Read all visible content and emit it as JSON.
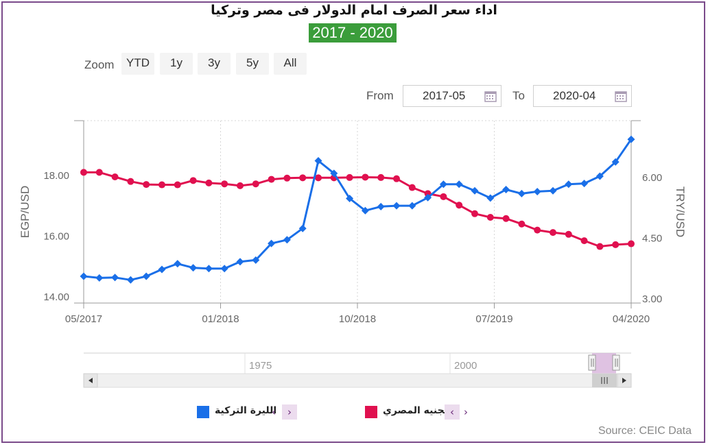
{
  "title": "اداء سعر الصرف امام الدولار فى مصر وتركيا",
  "subtitle": "2017 - 2020",
  "zoom": {
    "label": "Zoom",
    "buttons": [
      "YTD",
      "1y",
      "3y",
      "5y",
      "All"
    ]
  },
  "range": {
    "from_label": "From",
    "from_value": "2017-05",
    "to_label": "To",
    "to_value": "2020-04"
  },
  "navigator": {
    "labels": [
      "1975",
      "2000"
    ]
  },
  "legend": {
    "try_label": "الليرة التركية",
    "egp_label": "الجنيه المصري"
  },
  "source": "Source: CEIC Data",
  "colors": {
    "try": "#1a6fe8",
    "egp": "#e0104f",
    "frame": "#7a4a8a",
    "subtitle_bg": "#3b9d3b"
  },
  "chart_data": {
    "type": "line",
    "xlabels": [
      "05/2017",
      "01/2018",
      "10/2018",
      "07/2019",
      "04/2020"
    ],
    "y_left": {
      "label": "EGP/USD",
      "range": [
        13.8,
        19.8
      ],
      "ticks": [
        14.0,
        16.0,
        18.0
      ],
      "tick_labels": [
        "14.00",
        "16.00",
        "18.00"
      ]
    },
    "y_right": {
      "label": "TRY/USD",
      "range": [
        2.9,
        7.4
      ],
      "ticks": [
        3.0,
        4.5,
        6.0
      ],
      "tick_labels": [
        "3.00",
        "4.50",
        "6.00"
      ]
    },
    "grid": "vertical-dotted",
    "series": [
      {
        "name": "الجنيه المصري",
        "axis": "left",
        "color": "#e0104f",
        "values": [
          18.1,
          18.1,
          17.95,
          17.8,
          17.7,
          17.69,
          17.69,
          17.83,
          17.75,
          17.72,
          17.66,
          17.72,
          17.87,
          17.91,
          17.92,
          17.92,
          17.92,
          17.93,
          17.94,
          17.93,
          17.89,
          17.6,
          17.4,
          17.3,
          17.02,
          16.74,
          16.62,
          16.58,
          16.4,
          16.2,
          16.12,
          16.06,
          15.85,
          15.66,
          15.72,
          15.75
        ]
      },
      {
        "name": "الليرة التركية",
        "axis": "right",
        "color": "#1a6fe8",
        "values": [
          3.56,
          3.52,
          3.53,
          3.47,
          3.56,
          3.73,
          3.87,
          3.77,
          3.75,
          3.75,
          3.92,
          3.96,
          4.37,
          4.46,
          4.74,
          6.41,
          6.1,
          5.48,
          5.18,
          5.28,
          5.3,
          5.3,
          5.5,
          5.83,
          5.83,
          5.67,
          5.49,
          5.7,
          5.6,
          5.65,
          5.67,
          5.83,
          5.85,
          6.03,
          6.38,
          6.94
        ]
      }
    ]
  }
}
